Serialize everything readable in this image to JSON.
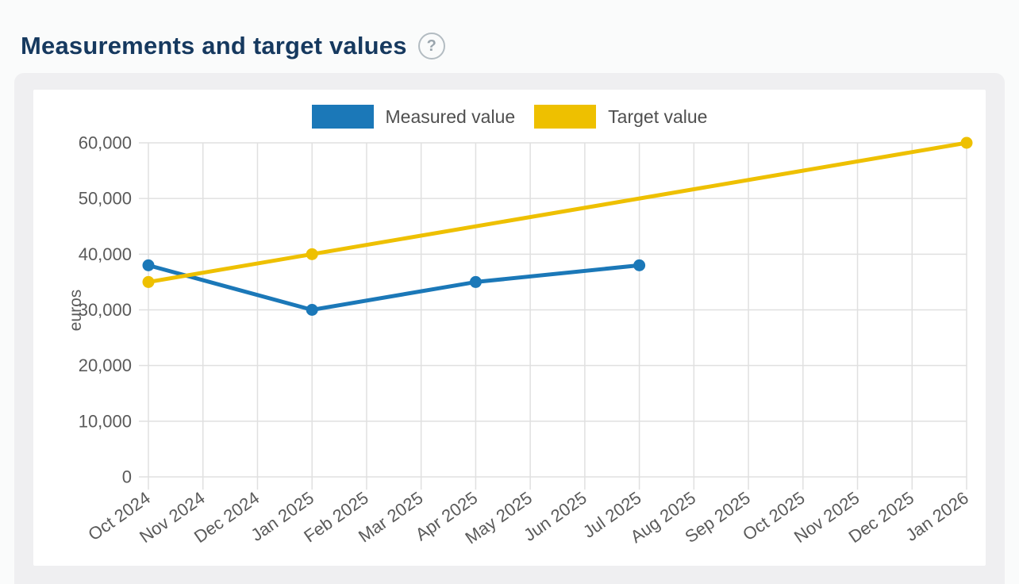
{
  "header": {
    "title": "Measurements and target values",
    "help_icon": "?"
  },
  "chart_data": {
    "type": "line",
    "title": "Measurements and target values",
    "xlabel": "",
    "ylabel": "euros",
    "ylim": [
      0,
      60000
    ],
    "ytick_step": 10000,
    "ytick_labels": [
      "0",
      "10,000",
      "20,000",
      "30,000",
      "40,000",
      "50,000",
      "60,000"
    ],
    "grid": true,
    "legend_position": "top-center",
    "categories": [
      "Oct 2024",
      "Nov 2024",
      "Dec 2024",
      "Jan 2025",
      "Feb 2025",
      "Mar 2025",
      "Apr 2025",
      "May 2025",
      "Jun 2025",
      "Jul 2025",
      "Aug 2025",
      "Sep 2025",
      "Oct 2025",
      "Nov 2025",
      "Dec 2025",
      "Jan 2026"
    ],
    "series": [
      {
        "name": "Measured value",
        "color": "#1b78b8",
        "points": [
          {
            "x": "Oct 2024",
            "y": 38000
          },
          {
            "x": "Jan 2025",
            "y": 30000
          },
          {
            "x": "Apr 2025",
            "y": 35000
          },
          {
            "x": "Jul 2025",
            "y": 38000
          }
        ]
      },
      {
        "name": "Target value",
        "color": "#eec000",
        "points": [
          {
            "x": "Oct 2024",
            "y": 35000
          },
          {
            "x": "Jan 2025",
            "y": 40000
          },
          {
            "x": "Jan 2026",
            "y": 60000
          }
        ]
      }
    ]
  }
}
